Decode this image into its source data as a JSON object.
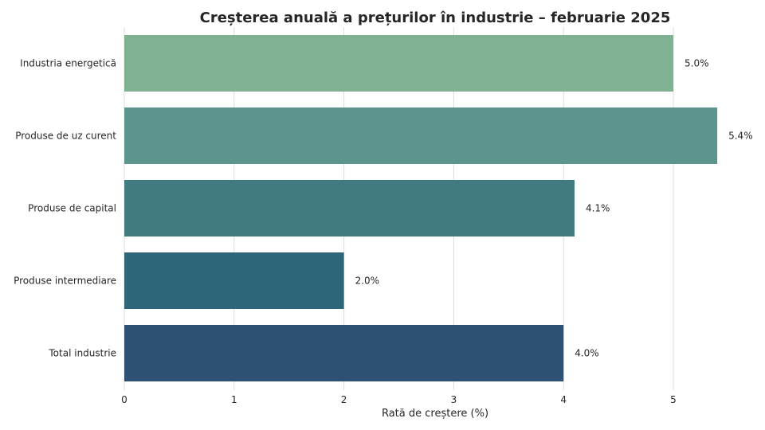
{
  "chart_data": {
    "type": "bar",
    "orientation": "horizontal",
    "title": "Creșterea anuală a prețurilor în industrie – februarie 2025",
    "xlabel": "Rată de creștere (%)",
    "ylabel": "",
    "categories": [
      "Industria energetică",
      "Produse de uz curent",
      "Produse de capital",
      "Produse intermediare",
      "Total industrie"
    ],
    "values": [
      5.0,
      5.4,
      4.1,
      2.0,
      4.0
    ],
    "data_labels": [
      "5.0%",
      "5.4%",
      "4.1%",
      "2.0%",
      "4.0%"
    ],
    "bar_colors": [
      "#80b193",
      "#5b958b",
      "#417b80",
      "#2d6678",
      "#2f5175"
    ],
    "xlim": [
      0,
      5.5
    ],
    "xticks": [
      0,
      1,
      2,
      3,
      4,
      5
    ],
    "grid": true,
    "legend": "none"
  }
}
